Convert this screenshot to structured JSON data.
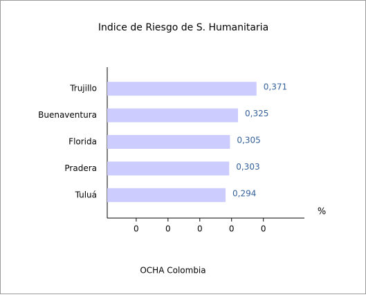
{
  "chart_data": {
    "type": "barh",
    "title": "Indice de Riesgo de S. Humanitaria",
    "categories": [
      "Trujillo",
      "Buenaventura",
      "Florida",
      "Pradera",
      "Tuluá"
    ],
    "values": [
      0.371,
      0.325,
      0.305,
      0.303,
      0.294
    ],
    "value_labels": [
      "0,371",
      "0,325",
      "0,305",
      "0,303",
      "0,294"
    ],
    "color": "#ccccff",
    "xlabel": "%",
    "xlim": [
      0,
      0.49
    ],
    "xticks": [
      {
        "value": 0.072,
        "label": "0"
      },
      {
        "value": 0.151,
        "label": "0"
      },
      {
        "value": 0.23,
        "label": "0"
      },
      {
        "value": 0.309,
        "label": "0"
      },
      {
        "value": 0.388,
        "label": "0"
      }
    ],
    "source": "OCHA Colombia"
  }
}
